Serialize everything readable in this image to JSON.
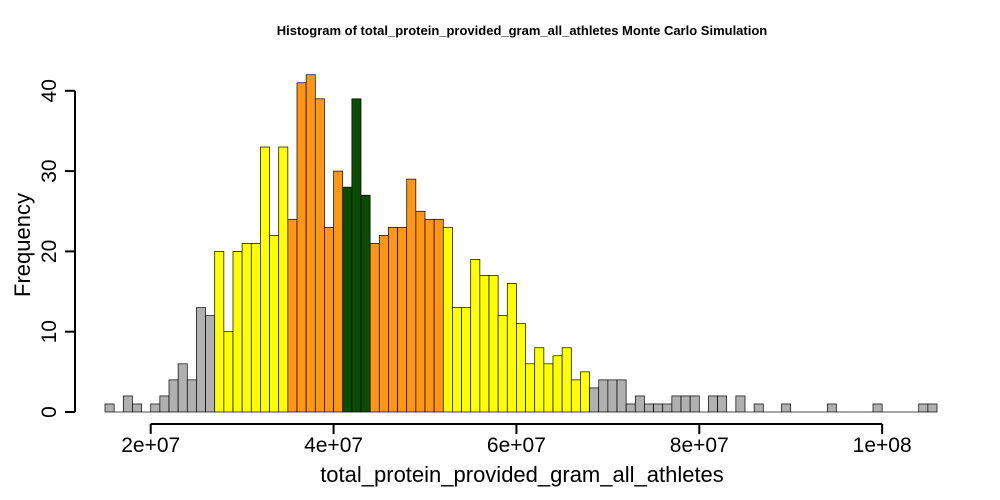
{
  "chart_data": {
    "type": "bar",
    "title": "Histogram of  total_protein_provided_gram_all_athletes  Monte Carlo Simulation",
    "xlabel": "total_protein_provided_gram_all_athletes",
    "ylabel": "Frequency",
    "xlim": [
      15000000,
      106000000
    ],
    "ylim": [
      0,
      42
    ],
    "bin_width": 1000000,
    "bin_start": 15000000,
    "x_ticks": [
      20000000,
      40000000,
      60000000,
      80000000,
      100000000
    ],
    "x_tick_labels": [
      "2e+07",
      "4e+07",
      "6e+07",
      "8e+07",
      "1e+08"
    ],
    "y_ticks": [
      0,
      10,
      20,
      30,
      40
    ],
    "y_tick_labels": [
      "0",
      "10",
      "20",
      "30",
      "40"
    ],
    "grid": false,
    "legend": "none",
    "colors": {
      "tail": "#b0b0b0",
      "outer": "#ffff00",
      "inner": "#ff9614",
      "center": "#0a4c00",
      "edge": "#000000"
    },
    "counts": [
      1,
      0,
      2,
      1,
      0,
      1,
      2,
      4,
      6,
      4,
      13,
      12,
      20,
      10,
      20,
      21,
      21,
      33,
      22,
      33,
      24,
      41,
      42,
      39,
      23,
      30,
      28,
      39,
      27,
      21,
      22,
      23,
      23,
      29,
      25,
      24,
      24,
      23,
      13,
      13,
      19,
      17,
      17,
      12,
      16,
      11,
      6,
      8,
      6,
      7,
      8,
      4,
      5,
      3,
      4,
      4,
      4,
      1,
      2,
      1,
      1,
      1,
      2,
      2,
      2,
      0,
      2,
      2,
      0,
      2,
      0,
      1,
      0,
      0,
      1,
      0,
      0,
      0,
      0,
      1,
      0,
      0,
      0,
      0,
      1,
      0,
      0,
      0,
      0,
      1,
      1
    ],
    "bin_colors": [
      "tail",
      "tail",
      "tail",
      "tail",
      "tail",
      "tail",
      "tail",
      "tail",
      "tail",
      "tail",
      "tail",
      "tail",
      "outer",
      "outer",
      "outer",
      "outer",
      "outer",
      "outer",
      "outer",
      "outer",
      "inner",
      "inner",
      "inner",
      "inner",
      "inner",
      "inner",
      "center",
      "center",
      "center",
      "inner",
      "inner",
      "inner",
      "inner",
      "inner",
      "inner",
      "inner",
      "inner",
      "outer",
      "outer",
      "outer",
      "outer",
      "outer",
      "outer",
      "outer",
      "outer",
      "outer",
      "outer",
      "outer",
      "outer",
      "outer",
      "outer",
      "outer",
      "outer",
      "tail",
      "tail",
      "tail",
      "tail",
      "tail",
      "tail",
      "tail",
      "tail",
      "tail",
      "tail",
      "tail",
      "tail",
      "tail",
      "tail",
      "tail",
      "tail",
      "tail",
      "tail",
      "tail",
      "tail",
      "tail",
      "tail",
      "tail",
      "tail",
      "tail",
      "tail",
      "tail",
      "tail",
      "tail",
      "tail",
      "tail",
      "tail",
      "tail",
      "tail",
      "tail",
      "tail",
      "tail",
      "tail"
    ]
  }
}
